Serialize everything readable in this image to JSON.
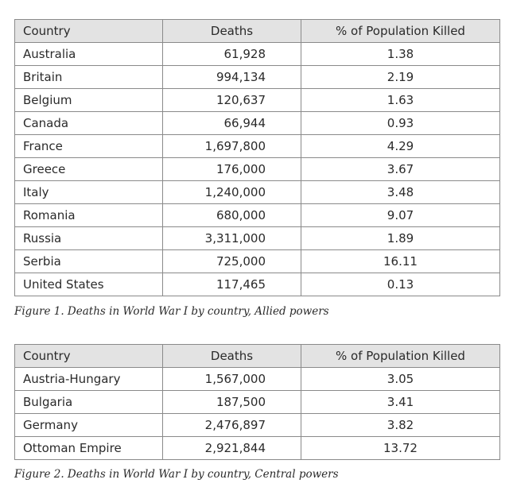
{
  "table1": {
    "headers": [
      "Country",
      "Deaths",
      "% of Population Killed"
    ],
    "rows": [
      {
        "country": "Australia",
        "deaths": "61,928",
        "pct": "1.38"
      },
      {
        "country": "Britain",
        "deaths": "994,134",
        "pct": "2.19"
      },
      {
        "country": "Belgium",
        "deaths": "120,637",
        "pct": "1.63"
      },
      {
        "country": "Canada",
        "deaths": "66,944",
        "pct": "0.93"
      },
      {
        "country": "France",
        "deaths": "1,697,800",
        "pct": "4.29"
      },
      {
        "country": "Greece",
        "deaths": "176,000",
        "pct": "3.67"
      },
      {
        "country": "Italy",
        "deaths": "1,240,000",
        "pct": "3.48"
      },
      {
        "country": "Romania",
        "deaths": "680,000",
        "pct": "9.07"
      },
      {
        "country": "Russia",
        "deaths": "3,311,000",
        "pct": "1.89"
      },
      {
        "country": "Serbia",
        "deaths": "725,000",
        "pct": "16.11"
      },
      {
        "country": "United States",
        "deaths": "117,465",
        "pct": "0.13"
      }
    ],
    "caption": "Figure 1. Deaths in World War I by country, Allied powers"
  },
  "table2": {
    "headers": [
      "Country",
      "Deaths",
      "% of Population Killed"
    ],
    "rows": [
      {
        "country": "Austria-Hungary",
        "deaths": "1,567,000",
        "pct": "3.05"
      },
      {
        "country": "Bulgaria",
        "deaths": "187,500",
        "pct": "3.41"
      },
      {
        "country": "Germany",
        "deaths": "2,476,897",
        "pct": "3.82"
      },
      {
        "country": "Ottoman Empire",
        "deaths": "2,921,844",
        "pct": "13.72"
      }
    ],
    "caption": "Figure 2. Deaths in World War I by country, Central powers"
  }
}
